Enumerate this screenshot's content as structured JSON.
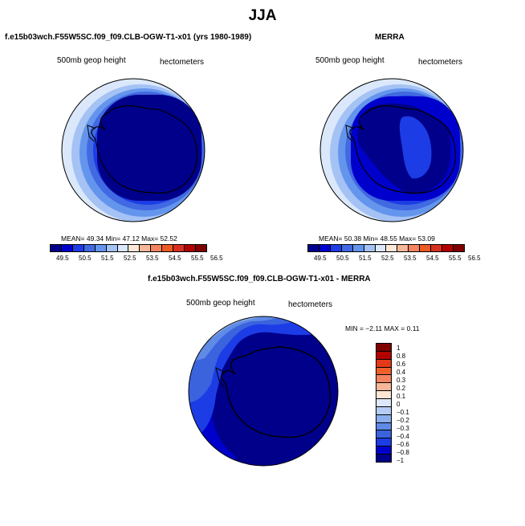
{
  "figure": {
    "title": "JJA"
  },
  "panels": {
    "model": {
      "title": "f.e15b03wch.F55W5SC.f09_f09.CLB-OGW-T1-x01 (yrs 1980-1989)",
      "left_label": "500mb geop height",
      "right_label": "hectometers",
      "stats": "MEAN=  49.34  Min=  47.12  Max=  52.52",
      "colorbar_ticks": [
        "49.5",
        "50.5",
        "51.5",
        "52.5",
        "53.5",
        "54.5",
        "55.5",
        "56.5"
      ]
    },
    "obs": {
      "title": "MERRA",
      "left_label": "500mb geop height",
      "right_label": "hectometers",
      "stats": "MEAN=  50.38  Min=  48.55  Max=  53.09",
      "colorbar_ticks": [
        "49.5",
        "50.5",
        "51.5",
        "52.5",
        "53.5",
        "54.5",
        "55.5",
        "56.5"
      ]
    },
    "diff": {
      "title": "f.e15b03wch.F55W5SC.f09_f09.CLB-OGW-T1-x01 - MERRA",
      "left_label": "500mb geop height",
      "right_label": "hectometers",
      "stats": "MIN =  −2.11  MAX =   0.11",
      "colorbar_ticks": [
        "1",
        "0.8",
        "0.6",
        "0.4",
        "0.3",
        "0.2",
        "0.1",
        "0",
        "−0.1",
        "−0.2",
        "−0.3",
        "−0.4",
        "−0.6",
        "−0.8",
        "−1"
      ]
    }
  },
  "colors": {
    "abs_scale": [
      "#00008b",
      "#0000cd",
      "#1c3ce6",
      "#4169e1",
      "#6495ed",
      "#a4c2f4",
      "#dbe8fb",
      "#fde8d8",
      "#f7b799",
      "#f4845f",
      "#ee5a24",
      "#d7301f",
      "#b30000",
      "#800000"
    ],
    "diff_scale": [
      "#800000",
      "#b30000",
      "#e33a1a",
      "#f0602a",
      "#f4845f",
      "#f7b799",
      "#fde6d4",
      "#dde8fa",
      "#b5cdf5",
      "#8aaeee",
      "#5f8ae6",
      "#3a63dd",
      "#1c3ce6",
      "#0000cd",
      "#00008b"
    ]
  }
}
